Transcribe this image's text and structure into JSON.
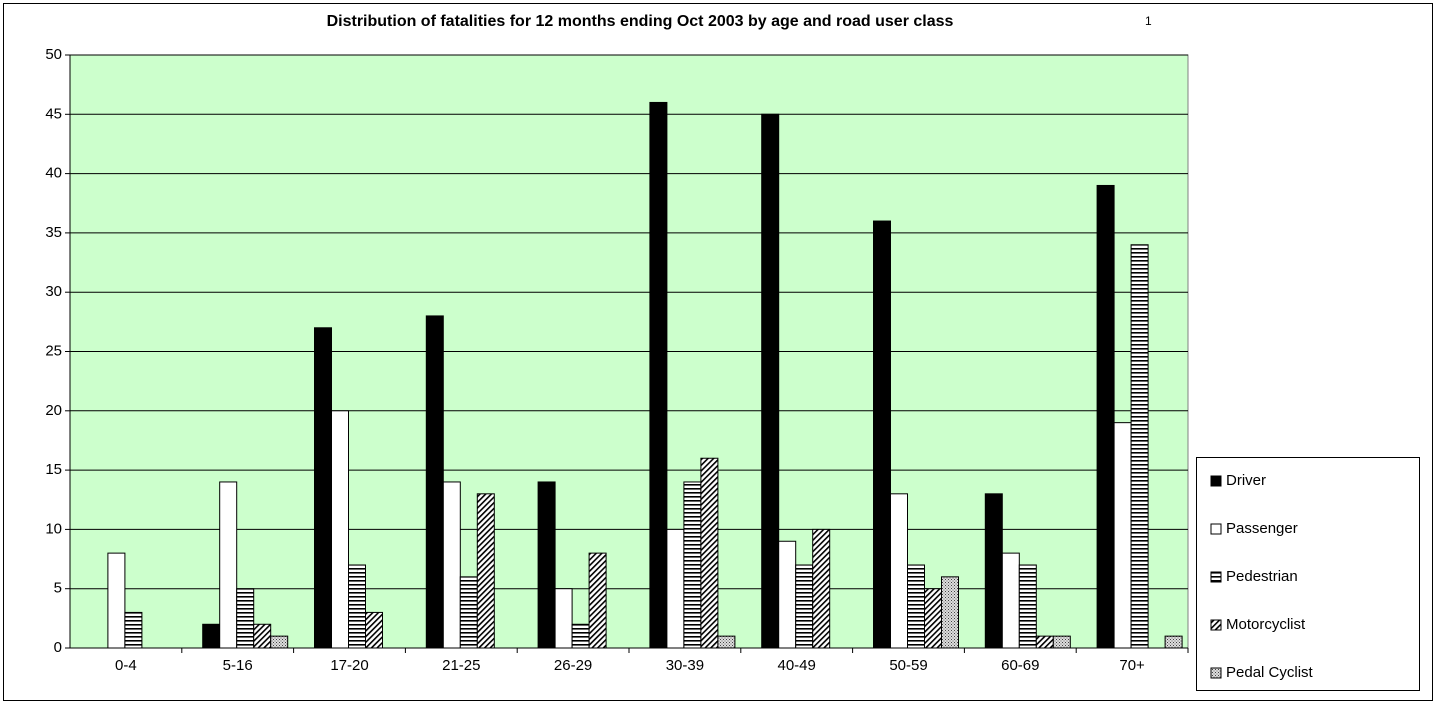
{
  "chart_data": {
    "type": "bar",
    "title": "Distribution of fatalities for 12 months ending Oct 2003 by age and road user class",
    "title_note": "1",
    "categories": [
      "0-4",
      "5-16",
      "17-20",
      "21-25",
      "26-29",
      "30-39",
      "40-49",
      "50-59",
      "60-69",
      "70+"
    ],
    "series": [
      {
        "name": "Driver",
        "color": "black",
        "values": [
          0,
          2,
          27,
          28,
          14,
          46,
          45,
          36,
          13,
          39
        ]
      },
      {
        "name": "Passenger",
        "color": "white",
        "values": [
          8,
          14,
          20,
          14,
          5,
          10,
          9,
          13,
          8,
          19
        ]
      },
      {
        "name": "Pedestrian",
        "color": "horizontal-stripes",
        "values": [
          3,
          5,
          7,
          6,
          2,
          14,
          7,
          7,
          7,
          34
        ]
      },
      {
        "name": "Motorcyclist",
        "color": "diagonal-stripes",
        "values": [
          0,
          2,
          3,
          13,
          8,
          16,
          10,
          5,
          1,
          0
        ]
      },
      {
        "name": "Pedal Cyclist",
        "color": "dots",
        "values": [
          0,
          1,
          0,
          0,
          0,
          1,
          0,
          6,
          1,
          1
        ]
      }
    ],
    "ylim": [
      0,
      50
    ],
    "yticks": [
      0,
      5,
      10,
      15,
      20,
      25,
      30,
      35,
      40,
      45,
      50
    ],
    "grid": true,
    "plot_background": "#ccffcc",
    "legend": "right"
  }
}
